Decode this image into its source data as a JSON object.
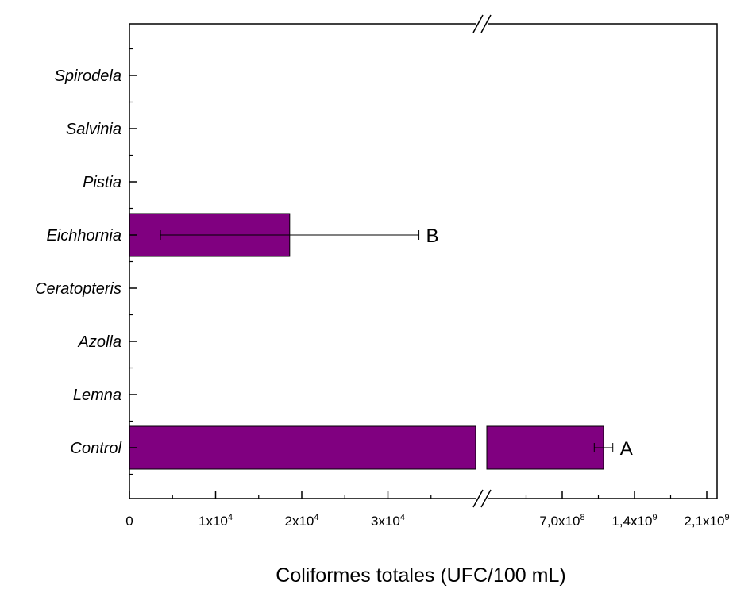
{
  "chart_data": {
    "type": "bar",
    "orientation": "horizontal",
    "xlabel": "Coliformes totales (UFC/100 mL)",
    "ylabel": "",
    "categories": [
      "Spirodela",
      "Salvinia",
      "Pistia",
      "Eichhornia",
      "Ceratopteris",
      "Azolla",
      "Lemna",
      "Control"
    ],
    "values": [
      0,
      0,
      0,
      18600,
      0,
      0,
      0,
      1100000000
    ],
    "errors": [
      0,
      0,
      0,
      15000,
      0,
      0,
      0,
      90000000
    ],
    "annotations": [
      "",
      "",
      "",
      "B",
      "",
      "",
      "",
      "A"
    ],
    "bar_color": "#800080",
    "axis_break": true,
    "x_segments": [
      {
        "range": [
          0,
          40000
        ],
        "ticks": [
          {
            "value": 0,
            "base": "0",
            "exp": ""
          },
          {
            "value": 10000,
            "base": "1x10",
            "exp": "4"
          },
          {
            "value": 20000,
            "base": "2x10",
            "exp": "4"
          },
          {
            "value": 30000,
            "base": "3x10",
            "exp": "4"
          }
        ]
      },
      {
        "range": [
          0,
          2200000000
        ],
        "ticks": [
          {
            "value": 700000000,
            "base": "7,0x10",
            "exp": "8"
          },
          {
            "value": 1400000000,
            "base": "1,4x10",
            "exp": "9"
          },
          {
            "value": 2100000000,
            "base": "2,1x10",
            "exp": "9"
          }
        ]
      }
    ],
    "grid": false,
    "legend": "none"
  }
}
